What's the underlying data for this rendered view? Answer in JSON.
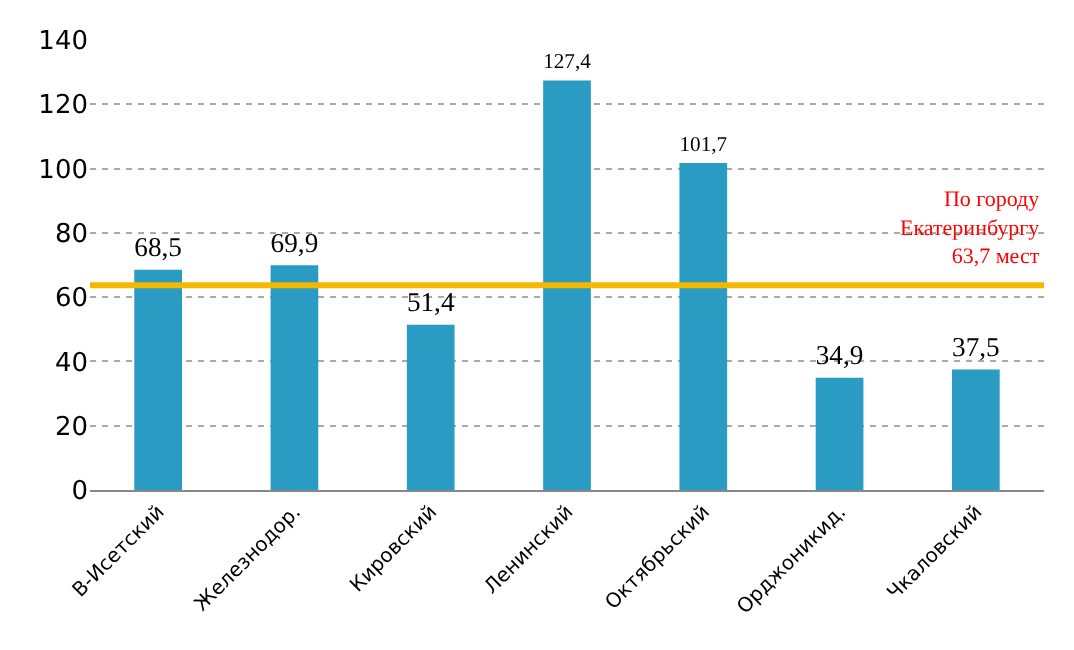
{
  "chart_data": {
    "type": "bar",
    "categories": [
      "В-Исетский",
      "Железнодор.",
      "Кировский",
      "Ленинский",
      "Октябрьский",
      "Орджоникид.",
      "Чкаловский"
    ],
    "values": [
      68.5,
      69.9,
      51.4,
      127.4,
      101.7,
      34.9,
      37.5
    ],
    "value_labels": [
      "68,5",
      "69,9",
      "51,4",
      "127,4",
      "101,7",
      "34,9",
      "37,5"
    ],
    "color": "#2a9cc4",
    "ylim": [
      0,
      140
    ],
    "yticks": [
      0,
      20,
      40,
      60,
      80,
      100,
      120,
      140
    ],
    "grid": "y",
    "legend": false,
    "ref_lines": [
      {
        "axis": "y",
        "value": 63.7,
        "label": "По городу\nЕкатеринбургу\n63,7 мест",
        "color": "#f5b800"
      }
    ]
  }
}
